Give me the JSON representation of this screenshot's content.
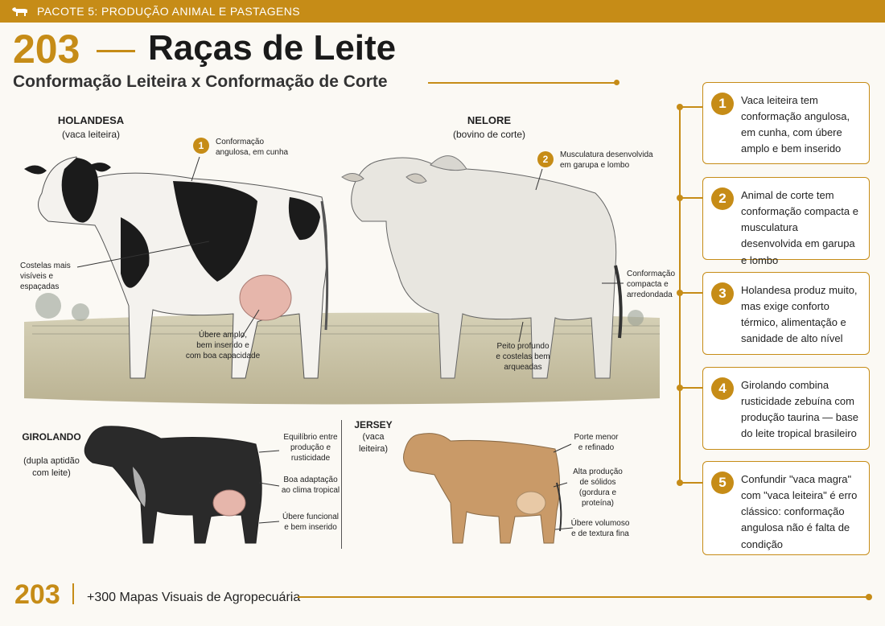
{
  "header": {
    "package": "PACOTE 5: PRODUÇÃO ANIMAL E PASTAGENS",
    "icon": "cow-icon"
  },
  "page": {
    "number": "203",
    "title": "Raças de Leite",
    "subtitle": "Conformação Leiteira x Conformação de Corte"
  },
  "animals": {
    "holandesa": {
      "name": "HOLANDESA",
      "type": "(vaca leiteira)",
      "badge": "1",
      "annotations": {
        "a1": "Conformação\nangulosa, em cunha",
        "ribs": "Costelas mais\nvisíveis e espaçadas",
        "udder": "Úbere amplo,\nbem inserido e\ncom boa capacidade"
      }
    },
    "nelore": {
      "name": "NELORE",
      "type": "(bovino de corte)",
      "badge": "2",
      "annotations": {
        "a2": "Musculatura desenvolvida\nem garupa e lombo",
        "compact": "Conformação\ncompacta e\narredondada",
        "chest": "Peito profundo\ne costelas bem\narqueadas"
      }
    },
    "girolando": {
      "name": "GIROLANDO",
      "type": "(dupla aptidão\ncom leite)",
      "annotations": {
        "balance": "Equilíbrio entre\nprodução e\nrusticidade",
        "adapt": "Boa adaptação\nao clima tropical",
        "udder": "Úbere funcional\ne bem inserido"
      }
    },
    "jersey": {
      "name": "JERSEY",
      "type": "(vaca leiteira)",
      "annotations": {
        "size": "Porte menor\ne refinado",
        "solids": "Alta produção\nde sólidos\n(gordura e proteína)",
        "udder": "Úbere volumoso\ne de textura fina"
      }
    }
  },
  "cards": [
    {
      "num": "1",
      "text": "Vaca leiteira tem conformação angulosa, em cunha, com úbere amplo e bem inserido"
    },
    {
      "num": "2",
      "text": "Animal de corte tem conformação compacta e musculatura desenvolvida em garupa e lombo"
    },
    {
      "num": "3",
      "text": "Holandesa produz muito, mas exige conforto térmico, alimentação e sanidade de alto nível"
    },
    {
      "num": "4",
      "text": "Girolando combina rusticidade zebuína com produção taurina — base do leite tropical brasileiro"
    },
    {
      "num": "5",
      "text": "Confundir \"vaca magra\" com \"vaca leiteira\" é erro clássico: conformação angulosa não é falta de condição"
    }
  ],
  "footer": {
    "number": "203",
    "text": "+300 Mapas Visuais de Agropecuária"
  },
  "colors": {
    "accent": "#c68c17",
    "background": "#fbf9f4"
  }
}
